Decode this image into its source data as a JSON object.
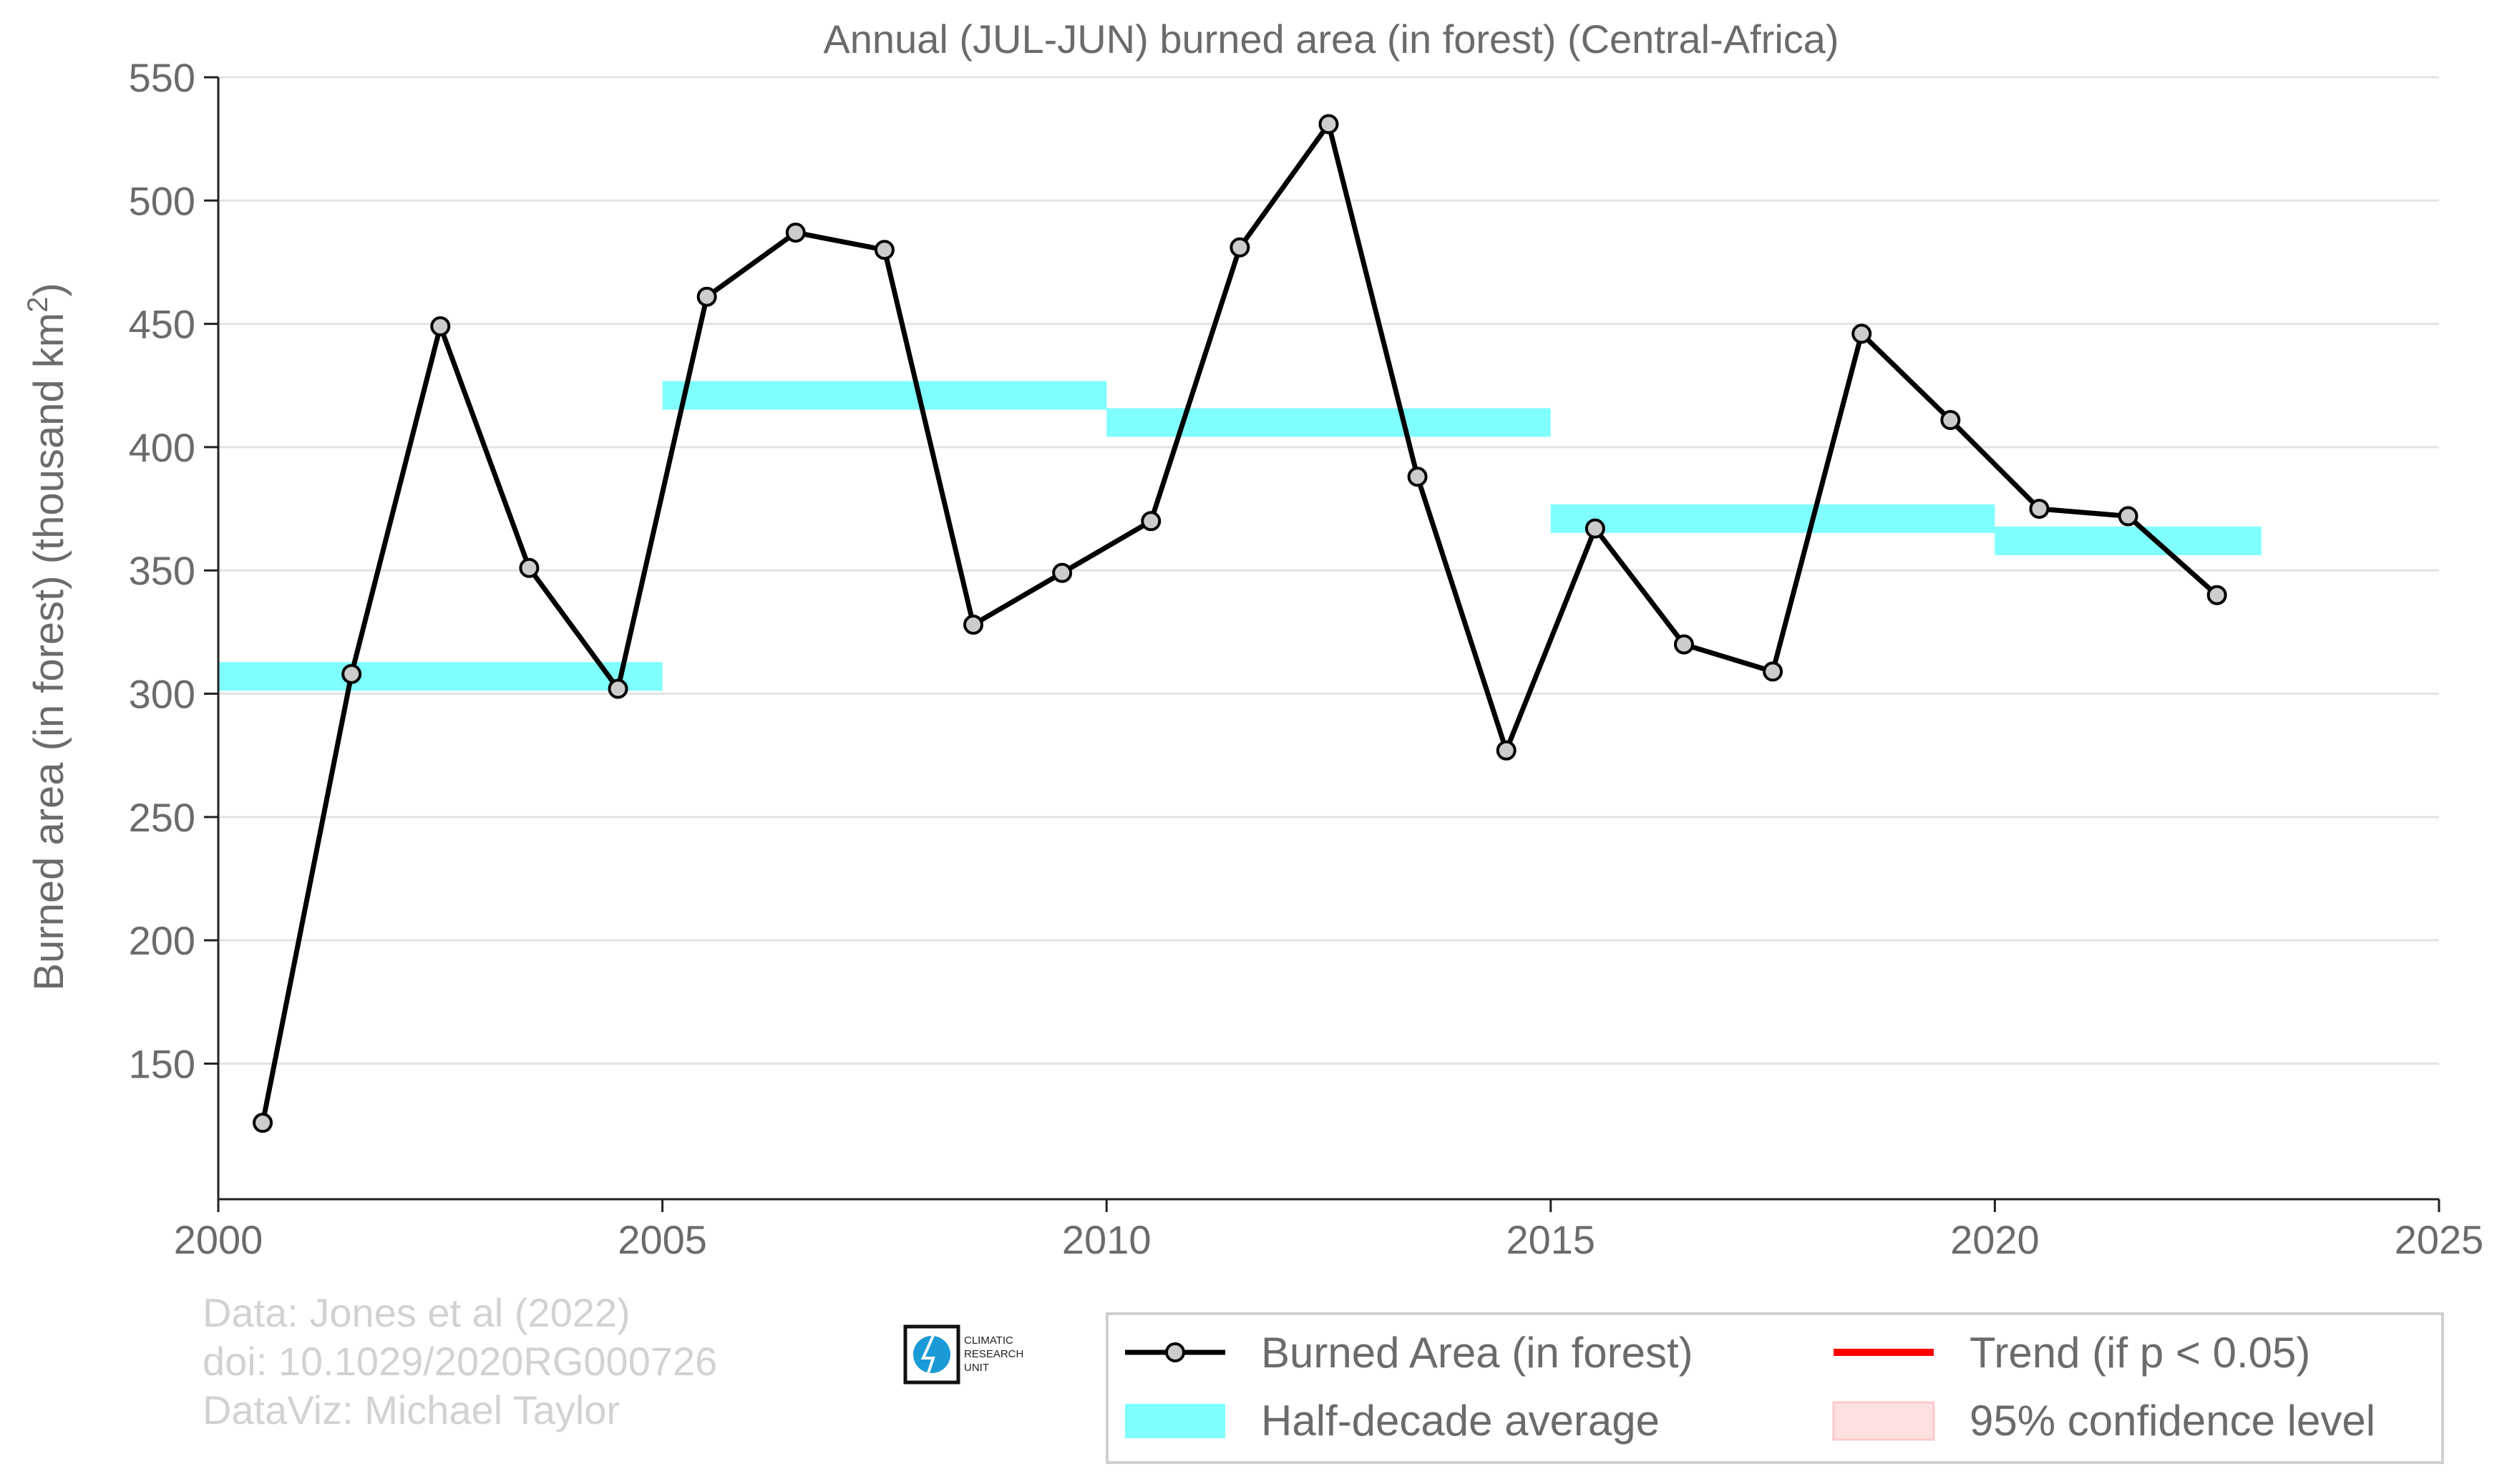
{
  "chart_data": {
    "type": "line",
    "title": "Annual (JUL-JUN) burned area (in forest) (Central-Africa)",
    "ylabel": "Burned area (in forest) (thousand km",
    "ylabel_sup": "2",
    "ylabel_end": ")",
    "xlabel": "",
    "xlim": [
      2000,
      2025
    ],
    "ylim": [
      95,
      550
    ],
    "x_ticks": [
      "2000",
      "2005",
      "2010",
      "2015",
      "2020",
      "2025"
    ],
    "y_ticks": [
      "150",
      "200",
      "250",
      "300",
      "350",
      "400",
      "450",
      "500",
      "550"
    ],
    "grid": "horizontal",
    "series": [
      {
        "name": "Burned Area (in forest)",
        "type": "line",
        "color": "#000000",
        "marker_color": "#cccccc",
        "x": [
          2000.5,
          2001.5,
          2002.5,
          2003.5,
          2004.5,
          2005.5,
          2006.5,
          2007.5,
          2008.5,
          2009.5,
          2010.5,
          2011.5,
          2012.5,
          2013.5,
          2014.5,
          2015.5,
          2016.5,
          2017.5,
          2018.5,
          2019.5,
          2020.5,
          2021.5,
          2022.5
        ],
        "y": [
          126,
          308,
          449,
          351,
          302,
          461,
          487,
          480,
          328,
          349,
          370,
          481,
          531,
          388,
          277,
          367,
          320,
          309,
          446,
          411,
          375,
          372,
          340
        ]
      },
      {
        "name": "Half-decade average",
        "type": "segments",
        "color": "#7fffff",
        "segments": [
          {
            "x0": 2000,
            "x1": 2005,
            "y": 307
          },
          {
            "x0": 2005,
            "x1": 2010,
            "y": 421
          },
          {
            "x0": 2010,
            "x1": 2015,
            "y": 410
          },
          {
            "x0": 2015,
            "x1": 2020,
            "y": 371
          },
          {
            "x0": 2020,
            "x1": 2023,
            "y": 362
          }
        ]
      }
    ],
    "legend": {
      "placement": "bottom-right",
      "items": [
        {
          "label": "Burned Area (in forest)",
          "color": "#000000"
        },
        {
          "label": "Half-decade average",
          "color": "#7fffff"
        },
        {
          "label": "Trend (if p < 0.05)",
          "color": "#ff0000"
        },
        {
          "label": "95% confidence level",
          "color": "#ffe0e0"
        }
      ]
    }
  },
  "credits": {
    "line1": "Data: Jones et al (2022)",
    "line2": "doi: 10.1029/2020RG000726",
    "line3": "DataViz: Michael Taylor"
  },
  "logo": {
    "line1": "CLIMATIC",
    "line2": "RESEARCH",
    "line3": "UNIT"
  }
}
